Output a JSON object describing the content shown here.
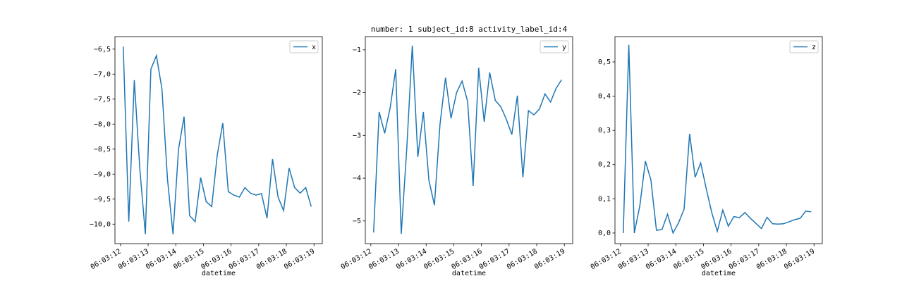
{
  "title": "number: 1 subject_id:8 activity_label_id:4",
  "chart_data": [
    {
      "type": "line",
      "xlabel": "datetime",
      "legend": "upper right",
      "x": [
        "06:03:12.1",
        "06:03:12.3",
        "06:03:12.5",
        "06:03:12.7",
        "06:03:12.9",
        "06:03:13.1",
        "06:03:13.3",
        "06:03:13.5",
        "06:03:13.7",
        "06:03:13.9",
        "06:03:14.1",
        "06:03:14.3",
        "06:03:14.5",
        "06:03:14.7",
        "06:03:14.9",
        "06:03:15.1",
        "06:03:15.3",
        "06:03:15.5",
        "06:03:15.7",
        "06:03:15.9",
        "06:03:16.1",
        "06:03:16.3",
        "06:03:16.5",
        "06:03:16.7",
        "06:03:16.9",
        "06:03:17.1",
        "06:03:17.3",
        "06:03:17.5",
        "06:03:17.7",
        "06:03:17.9",
        "06:03:18.1",
        "06:03:18.3",
        "06:03:18.5",
        "06:03:18.7",
        "06:03:18.9"
      ],
      "series": [
        {
          "name": "x",
          "color": "#1f77b4",
          "values": [
            -6.45,
            -9.95,
            -7.12,
            -8.9,
            -10.2,
            -6.9,
            -6.63,
            -7.3,
            -9.1,
            -10.2,
            -8.5,
            -7.85,
            -9.83,
            -9.95,
            -9.07,
            -9.55,
            -9.65,
            -8.62,
            -7.98,
            -9.35,
            -9.42,
            -9.46,
            -9.27,
            -9.38,
            -9.42,
            -9.39,
            -9.88,
            -8.7,
            -9.46,
            -9.73,
            -8.88,
            -9.27,
            -9.38,
            -9.27,
            -9.65
          ]
        }
      ],
      "xlim": [
        "06:03:11.8",
        "06:03:19.3"
      ],
      "xticks": [
        "06:03:12",
        "06:03:13",
        "06:03:14",
        "06:03:15",
        "06:03:16",
        "06:03:17",
        "06:03:18",
        "06:03:19"
      ],
      "ylim": [
        -10.39,
        -6.25
      ],
      "yticks": [
        {
          "value": -6.5,
          "label": "−6,5"
        },
        {
          "value": -7.0,
          "label": "−7,0"
        },
        {
          "value": -7.5,
          "label": "−7,5"
        },
        {
          "value": -8.0,
          "label": "−8,0"
        },
        {
          "value": -8.5,
          "label": "−8,5"
        },
        {
          "value": -9.0,
          "label": "−9,0"
        },
        {
          "value": -9.5,
          "label": "−9,5"
        },
        {
          "value": -10.0,
          "label": "−10,0"
        }
      ]
    },
    {
      "type": "line",
      "xlabel": "datetime",
      "legend": "upper right",
      "x": [
        "06:03:12.1",
        "06:03:12.3",
        "06:03:12.5",
        "06:03:12.7",
        "06:03:12.9",
        "06:03:13.1",
        "06:03:13.3",
        "06:03:13.5",
        "06:03:13.7",
        "06:03:13.9",
        "06:03:14.1",
        "06:03:14.3",
        "06:03:14.5",
        "06:03:14.7",
        "06:03:14.9",
        "06:03:15.1",
        "06:03:15.3",
        "06:03:15.5",
        "06:03:15.7",
        "06:03:15.9",
        "06:03:16.1",
        "06:03:16.3",
        "06:03:16.5",
        "06:03:16.7",
        "06:03:16.9",
        "06:03:17.1",
        "06:03:17.3",
        "06:03:17.5",
        "06:03:17.7",
        "06:03:17.9",
        "06:03:18.1",
        "06:03:18.3",
        "06:03:18.5",
        "06:03:18.7",
        "06:03:18.9"
      ],
      "series": [
        {
          "name": "y",
          "color": "#1f77b4",
          "values": [
            -5.27,
            -2.45,
            -2.95,
            -2.35,
            -1.45,
            -5.3,
            -3.3,
            -0.9,
            -3.5,
            -2.45,
            -4.05,
            -4.63,
            -2.75,
            -1.65,
            -2.6,
            -2.0,
            -1.73,
            -2.2,
            -4.18,
            -1.42,
            -2.68,
            -1.53,
            -2.18,
            -2.33,
            -2.62,
            -2.98,
            -2.07,
            -3.98,
            -2.42,
            -2.52,
            -2.38,
            -2.03,
            -2.22,
            -1.9,
            -1.7
          ]
        }
      ],
      "xlim": [
        "06:03:11.8",
        "06:03:19.3"
      ],
      "xticks": [
        "06:03:12",
        "06:03:13",
        "06:03:14",
        "06:03:15",
        "06:03:16",
        "06:03:17",
        "06:03:18",
        "06:03:19"
      ],
      "ylim": [
        -5.53,
        -0.69
      ],
      "yticks": [
        {
          "value": -1,
          "label": "−1"
        },
        {
          "value": -2,
          "label": "−2"
        },
        {
          "value": -3,
          "label": "−3"
        },
        {
          "value": -4,
          "label": "−4"
        },
        {
          "value": -5,
          "label": "−5"
        }
      ]
    },
    {
      "type": "line",
      "xlabel": "datetime",
      "legend": "upper right",
      "x": [
        "06:03:12.1",
        "06:03:12.3",
        "06:03:12.5",
        "06:03:12.7",
        "06:03:12.9",
        "06:03:13.1",
        "06:03:13.3",
        "06:03:13.5",
        "06:03:13.7",
        "06:03:13.9",
        "06:03:14.1",
        "06:03:14.3",
        "06:03:14.5",
        "06:03:14.7",
        "06:03:14.9",
        "06:03:15.1",
        "06:03:15.3",
        "06:03:15.5",
        "06:03:15.7",
        "06:03:15.9",
        "06:03:16.1",
        "06:03:16.3",
        "06:03:16.5",
        "06:03:16.7",
        "06:03:16.9",
        "06:03:17.1",
        "06:03:17.3",
        "06:03:17.5",
        "06:03:17.7",
        "06:03:17.9",
        "06:03:18.1",
        "06:03:18.3",
        "06:03:18.5",
        "06:03:18.7",
        "06:03:18.9"
      ],
      "series": [
        {
          "name": "z",
          "color": "#1f77b4",
          "values": [
            0.0,
            0.55,
            0.0,
            0.08,
            0.21,
            0.155,
            0.008,
            0.01,
            0.055,
            0.0,
            0.03,
            0.07,
            0.29,
            0.163,
            0.205,
            0.13,
            0.06,
            0.005,
            0.067,
            0.02,
            0.048,
            0.045,
            0.06,
            0.043,
            0.028,
            0.013,
            0.046,
            0.027,
            0.026,
            0.027,
            0.033,
            0.039,
            0.043,
            0.064,
            0.062
          ]
        }
      ],
      "xlim": [
        "06:03:11.8",
        "06:03:19.3"
      ],
      "xticks": [
        "06:03:12",
        "06:03:13",
        "06:03:14",
        "06:03:15",
        "06:03:16",
        "06:03:17",
        "06:03:18",
        "06:03:19"
      ],
      "ylim": [
        -0.031,
        0.574
      ],
      "yticks": [
        {
          "value": 0.0,
          "label": "0,0"
        },
        {
          "value": 0.1,
          "label": "0,1"
        },
        {
          "value": 0.2,
          "label": "0,2"
        },
        {
          "value": 0.3,
          "label": "0,3"
        },
        {
          "value": 0.4,
          "label": "0,4"
        },
        {
          "value": 0.5,
          "label": "0,5"
        }
      ]
    }
  ]
}
